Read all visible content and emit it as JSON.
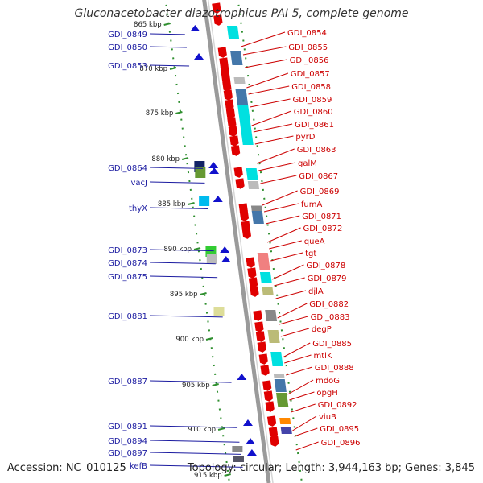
{
  "header": {
    "title": "Gluconacetobacter diazotrophicus PAI 5, complete genome"
  },
  "footer": {
    "accession": "Accession: NC_010125",
    "summary": "Topology: circular; Length: 3,944,163 bp; Genes: 3,845"
  },
  "colors": {
    "backbone": "#9a9a9a",
    "tick": "#2f8f2f",
    "left_label": "#1a1aa0",
    "right_label": "#cc0000",
    "forward_gene": "#e00000",
    "reverse_gene": "#1111cc"
  },
  "ruler": {
    "unit": "kbp",
    "ticks": [
      "865 kbp",
      "870 kbp",
      "875 kbp",
      "880 kbp",
      "885 kbp",
      "890 kbp",
      "895 kbp",
      "900 kbp",
      "905 kbp",
      "910 kbp",
      "915 kbp"
    ]
  },
  "left_labels": [
    "GDI_0849",
    "GDI_0850",
    "GDI_0853",
    "GDI_0864",
    "vacJ",
    "thyX",
    "GDI_0873",
    "GDI_0874",
    "GDI_0875",
    "GDI_0881",
    "GDI_0887",
    "GDI_0891",
    "GDI_0894",
    "GDI_0897",
    "kefB"
  ],
  "right_labels": [
    "GDI_0854",
    "GDI_0855",
    "GDI_0856",
    "GDI_0857",
    "GDI_0858",
    "GDI_0859",
    "GDI_0860",
    "GDI_0861",
    "pyrD",
    "GDI_0863",
    "galM",
    "GDI_0867",
    "GDI_0869",
    "fumA",
    "GDI_0871",
    "GDI_0872",
    "queA",
    "tgt",
    "GDI_0878",
    "GDI_0879",
    "djlA",
    "GDI_0882",
    "GDI_0883",
    "degP",
    "GDI_0885",
    "mtlK",
    "GDI_0888",
    "mdoG",
    "opgH",
    "GDI_0892",
    "viuB",
    "GDI_0895",
    "GDI_0896"
  ]
}
